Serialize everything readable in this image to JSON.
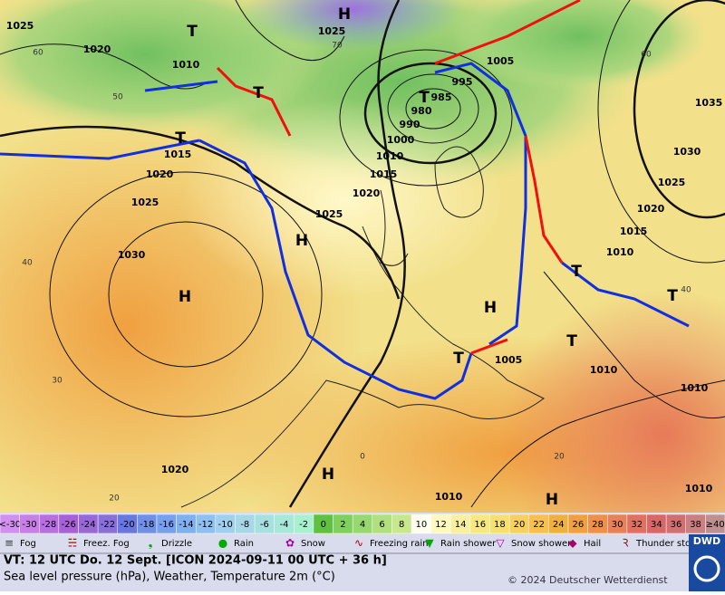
{
  "map": {
    "pressure_labels": [
      "1025",
      "1020",
      "1010",
      "1025",
      "1005",
      "995",
      "985",
      "980",
      "990",
      "1000",
      "1010",
      "1015",
      "1020",
      "1025",
      "1015",
      "1020",
      "1025",
      "1030",
      "1035",
      "1030",
      "1025",
      "1020",
      "1015",
      "1010",
      "1005",
      "1010",
      "1010",
      "1020",
      "1010",
      "1010"
    ],
    "centers": [
      "H",
      "T",
      "T",
      "T",
      "T",
      "H",
      "H",
      "H",
      "T",
      "T",
      "T",
      "T",
      "H",
      "H"
    ],
    "isotherm_labels": [
      "60",
      "50",
      "40",
      "30",
      "20",
      "0",
      "60",
      "40",
      "20",
      "70"
    ]
  },
  "temperature_scale": [
    {
      "label": "<-30",
      "color": "#d090f0"
    },
    {
      "label": "-30",
      "color": "#c880e8"
    },
    {
      "label": "-28",
      "color": "#b870e0"
    },
    {
      "label": "-26",
      "color": "#a860d8"
    },
    {
      "label": "-24",
      "color": "#9868d8"
    },
    {
      "label": "-22",
      "color": "#8870d8"
    },
    {
      "label": "-20",
      "color": "#6878e0"
    },
    {
      "label": "-18",
      "color": "#7090e8"
    },
    {
      "label": "-16",
      "color": "#78a0f0"
    },
    {
      "label": "-14",
      "color": "#80b0f0"
    },
    {
      "label": "-12",
      "color": "#90c0f0"
    },
    {
      "label": "-10",
      "color": "#a0d0f0"
    },
    {
      "label": "-8",
      "color": "#a8d8e8"
    },
    {
      "label": "-6",
      "color": "#a8e0e0"
    },
    {
      "label": "-4",
      "color": "#a8e8d8"
    },
    {
      "label": "-2",
      "color": "#a8f0d0"
    },
    {
      "label": "0",
      "color": "#60c040"
    },
    {
      "label": "2",
      "color": "#80d060"
    },
    {
      "label": "4",
      "color": "#98d870"
    },
    {
      "label": "6",
      "color": "#b0e080"
    },
    {
      "label": "8",
      "color": "#c8e890"
    },
    {
      "label": "10",
      "color": "#fffff0"
    },
    {
      "label": "12",
      "color": "#fff8c0"
    },
    {
      "label": "14",
      "color": "#f8f0a0"
    },
    {
      "label": "16",
      "color": "#f8e880"
    },
    {
      "label": "18",
      "color": "#f8e070"
    },
    {
      "label": "20",
      "color": "#f8d060"
    },
    {
      "label": "22",
      "color": "#f8c050"
    },
    {
      "label": "24",
      "color": "#f0b040"
    },
    {
      "label": "26",
      "color": "#f0a040"
    },
    {
      "label": "28",
      "color": "#f09048"
    },
    {
      "label": "30",
      "color": "#e88058"
    },
    {
      "label": "32",
      "color": "#e07060"
    },
    {
      "label": "34",
      "color": "#d86868"
    },
    {
      "label": "36",
      "color": "#d07070"
    },
    {
      "label": "38",
      "color": "#c88080"
    },
    {
      "label": "≥40",
      "color": "#c09090"
    }
  ],
  "weather_legend": [
    "Fog",
    "Freez. Fog",
    "Drizzle",
    "Rain",
    "Snow",
    "Freezing rain",
    "Rain shower",
    "Snow shower",
    "Hail",
    "Thunder storm"
  ],
  "footer": {
    "valid_time": "VT: 12 UTC Do.  12 Sept. [ICON 2024-09-11  00 UTC + 36 h]",
    "description": "Sea level pressure (hPa), Weather, Temperature 2m (°C)",
    "copyright": "© 2024 Deutscher Wetterdienst",
    "logo": "DWD"
  }
}
